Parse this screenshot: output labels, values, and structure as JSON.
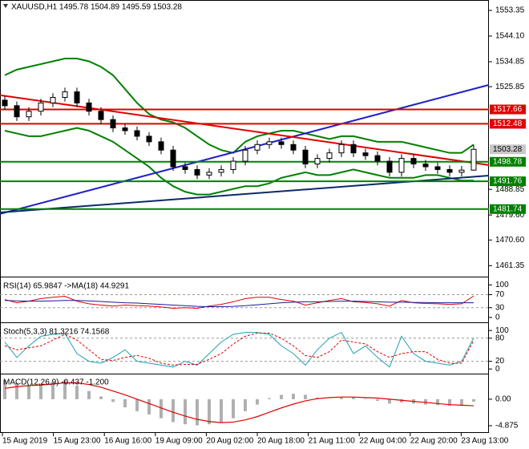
{
  "chart_data": [
    {
      "type": "candlestick",
      "title": "XAUUSD,H1 1495.78 1504.89 1495.59 1503.28",
      "open": [
        1521,
        1519,
        1515,
        1517,
        1520,
        1522,
        1524,
        1520,
        1517,
        1514,
        1511,
        1510,
        1508,
        1506,
        1503,
        1497,
        1496,
        1494,
        1495,
        1496,
        1499,
        1503,
        1505,
        1506,
        1505,
        1503,
        1498,
        1500,
        1502,
        1505,
        1502,
        1501,
        1499,
        1495,
        1500,
        1498,
        1497,
        1496,
        1495,
        1495.78
      ],
      "high": [
        1522.5,
        1520.5,
        1518.5,
        1521.5,
        1523.5,
        1525.5,
        1525.5,
        1521.5,
        1518.5,
        1515.5,
        1512.5,
        1511.5,
        1509.5,
        1507.5,
        1504.5,
        1498.5,
        1497.5,
        1496.5,
        1497.5,
        1500.5,
        1504.5,
        1506.5,
        1507.5,
        1507.5,
        1506.5,
        1504.5,
        1501.5,
        1503.5,
        1506.5,
        1506.5,
        1503.5,
        1502.5,
        1500.5,
        1501.5,
        1501.5,
        1499.5,
        1498.5,
        1497.5,
        1497.28,
        1504.89
      ],
      "low": [
        1517.5,
        1513.5,
        1513.5,
        1515.5,
        1518.5,
        1520.5,
        1518.5,
        1515.5,
        1512.5,
        1509.5,
        1508.5,
        1506.5,
        1504.5,
        1501.5,
        1495.5,
        1494.5,
        1492.5,
        1492.5,
        1493.5,
        1494.5,
        1497.5,
        1501.5,
        1503.5,
        1503.5,
        1501.5,
        1496.5,
        1496.5,
        1498.5,
        1500.5,
        1500.5,
        1499.5,
        1497.5,
        1493.5,
        1493.5,
        1496.5,
        1495.5,
        1494.5,
        1493.5,
        1493.5,
        1495.59
      ],
      "close": [
        1519,
        1515,
        1517,
        1520,
        1522,
        1524,
        1520,
        1517,
        1514,
        1511,
        1510,
        1508,
        1506,
        1503,
        1497,
        1496,
        1494,
        1495,
        1496,
        1499,
        1503,
        1505,
        1506,
        1505,
        1503,
        1498,
        1500,
        1502,
        1505,
        1502,
        1501,
        1499,
        1495,
        1500,
        1498,
        1497,
        1496,
        1495,
        1495.78,
        1503.28
      ],
      "bands": [
        {
          "color": "#008000",
          "values": [
            1530,
            1532,
            1533,
            1534,
            1535,
            1536,
            1536,
            1535,
            1533,
            1530,
            1525,
            1520,
            1516,
            1514,
            1513,
            1511,
            1508,
            1505,
            1503,
            1502,
            1506,
            1508,
            1509,
            1510,
            1510,
            1509,
            1508,
            1507,
            1508,
            1508,
            1507,
            1506,
            1506,
            1506,
            1505,
            1504,
            1503,
            1502,
            1502,
            1505
          ]
        },
        {
          "color": "#008000",
          "values": [
            1510,
            1509,
            1508,
            1508,
            1509,
            1510,
            1511,
            1510,
            1508,
            1506,
            1503,
            1500,
            1497,
            1493,
            1490,
            1488,
            1487,
            1487,
            1488,
            1489,
            1490,
            1490,
            1491,
            1493,
            1494,
            1495,
            1494,
            1494,
            1495,
            1496,
            1495,
            1494,
            1493,
            1493,
            1493,
            1494,
            1494,
            1493,
            1492,
            1492
          ]
        }
      ],
      "trendlines": [
        {
          "color": "#2020c8",
          "values": [
            1480.0,
            1526.5
          ]
        },
        {
          "color": "#0a2a6a",
          "values": [
            1480.5,
            1493.8
          ]
        },
        {
          "color": "#e00000",
          "values": [
            1522.8,
            1497.6
          ]
        }
      ],
      "levels": [
        {
          "value": 1517.66,
          "color": "#e00000"
        },
        {
          "value": 1512.48,
          "color": "#e00000"
        },
        {
          "value": 1498.78,
          "color": "#008000"
        },
        {
          "value": 1491.76,
          "color": "#008000"
        },
        {
          "value": 1481.74,
          "color": "#008000"
        }
      ],
      "ylim": [
        1457.4,
        1557.1
      ],
      "yticks": [
        1553.35,
        {
          "value": 1544.1,
          "label": "1544.10"
        },
        1534.85,
        1525.85,
        1488.85,
        {
          "value": 1479.6,
          "label": "1479.60"
        },
        {
          "value": 1470.6,
          "label": "1470.60"
        },
        1461.35
      ],
      "x_labels": [
        "15 Aug 2019",
        "15 Aug 23:00",
        "16 Aug 16:00",
        "19 Aug 09:00",
        "20 Aug 02:00",
        "20 Aug 18:00",
        "21 Aug 11:00",
        "22 Aug 04:00",
        "22 Aug 20:00",
        "23 Aug 13:00"
      ]
    },
    {
      "type": "line",
      "title": "RSI(14) 65.9847 ->MA(18) 44.9291",
      "ylim": [
        -15,
        118
      ],
      "yticks": [
        100,
        70,
        30,
        0
      ],
      "levels": [
        70,
        30
      ],
      "series": [
        {
          "color": "#e00000",
          "values": [
            55,
            45,
            50,
            58,
            62,
            65,
            50,
            42,
            38,
            35,
            38,
            36,
            35,
            32,
            28,
            30,
            28,
            35,
            40,
            48,
            58,
            62,
            62,
            55,
            50,
            38,
            45,
            52,
            58,
            48,
            46,
            42,
            35,
            52,
            45,
            43,
            42,
            40,
            42,
            65.9847
          ]
        },
        {
          "color": "#1a1aa0",
          "values": [
            52,
            51,
            50,
            50,
            51,
            52,
            52,
            51,
            49,
            47,
            45,
            44,
            42,
            40,
            38,
            36,
            34,
            33,
            33,
            34,
            36,
            39,
            42,
            45,
            47,
            48,
            48,
            49,
            50,
            50,
            49,
            48,
            47,
            47,
            46,
            46,
            45,
            45,
            45,
            44.9291
          ]
        }
      ]
    },
    {
      "type": "line",
      "title": "Stoch(5,3,3) 81.3216 74.1568",
      "ylim": [
        -10,
        115
      ],
      "yticks": [
        100,
        80,
        20,
        0
      ],
      "levels": [
        80,
        20
      ],
      "series": [
        {
          "color": "#20a0b0",
          "values": [
            70,
            30,
            60,
            85,
            90,
            92,
            40,
            20,
            15,
            30,
            50,
            20,
            15,
            10,
            5,
            20,
            10,
            40,
            70,
            90,
            95,
            95,
            90,
            60,
            40,
            10,
            50,
            80,
            95,
            40,
            60,
            30,
            5,
            85,
            40,
            20,
            15,
            10,
            20,
            81.3216
          ]
        },
        {
          "color": "#e00000",
          "dashed": true,
          "values": [
            60,
            50,
            55,
            60,
            75,
            90,
            75,
            50,
            25,
            22,
            30,
            35,
            28,
            15,
            10,
            12,
            12,
            25,
            40,
            65,
            85,
            93,
            93,
            80,
            60,
            35,
            30,
            45,
            75,
            70,
            65,
            45,
            30,
            40,
            45,
            45,
            25,
            15,
            15,
            74.1568
          ]
        }
      ]
    },
    {
      "type": "macd",
      "title": "MACD(12,26,9) -0.437 -1.200",
      "ylim": [
        -6.2,
        4.4
      ],
      "yticks": [
        {
          "value": 0,
          "label": "0.00"
        },
        -4.875
      ],
      "series": [
        {
          "color": "#b0b0b0",
          "values": [
            3.5,
            3,
            2.5,
            2.8,
            3.2,
            3.5,
            2.5,
            1.5,
            0.5,
            -0.5,
            -1.5,
            -2.2,
            -2.8,
            -3.5,
            -4.2,
            -4.6,
            -4.8,
            -4.6,
            -4.2,
            -3.5,
            -2.2,
            -1,
            0.2,
            0.8,
            1,
            0.8,
            0.3,
            0,
            0.3,
            0.4,
            0.1,
            -0.3,
            -0.8,
            -0.6,
            -0.8,
            -1,
            -1.1,
            -1.2,
            -1.2,
            -0.437
          ]
        },
        {
          "color": "#e00000",
          "values": [
            2,
            2.3,
            2.5,
            2.6,
            2.8,
            3,
            3,
            2.7,
            2.2,
            1.5,
            0.8,
            0,
            -0.8,
            -1.6,
            -2.4,
            -3.1,
            -3.7,
            -4.1,
            -4.3,
            -4.2,
            -3.8,
            -3.2,
            -2.4,
            -1.6,
            -0.9,
            -0.3,
            0.1,
            0.3,
            0.4,
            0.4,
            0.3,
            0.2,
            0,
            -0.2,
            -0.4,
            -0.6,
            -0.8,
            -1,
            -1.1,
            -1.2
          ]
        }
      ]
    }
  ]
}
